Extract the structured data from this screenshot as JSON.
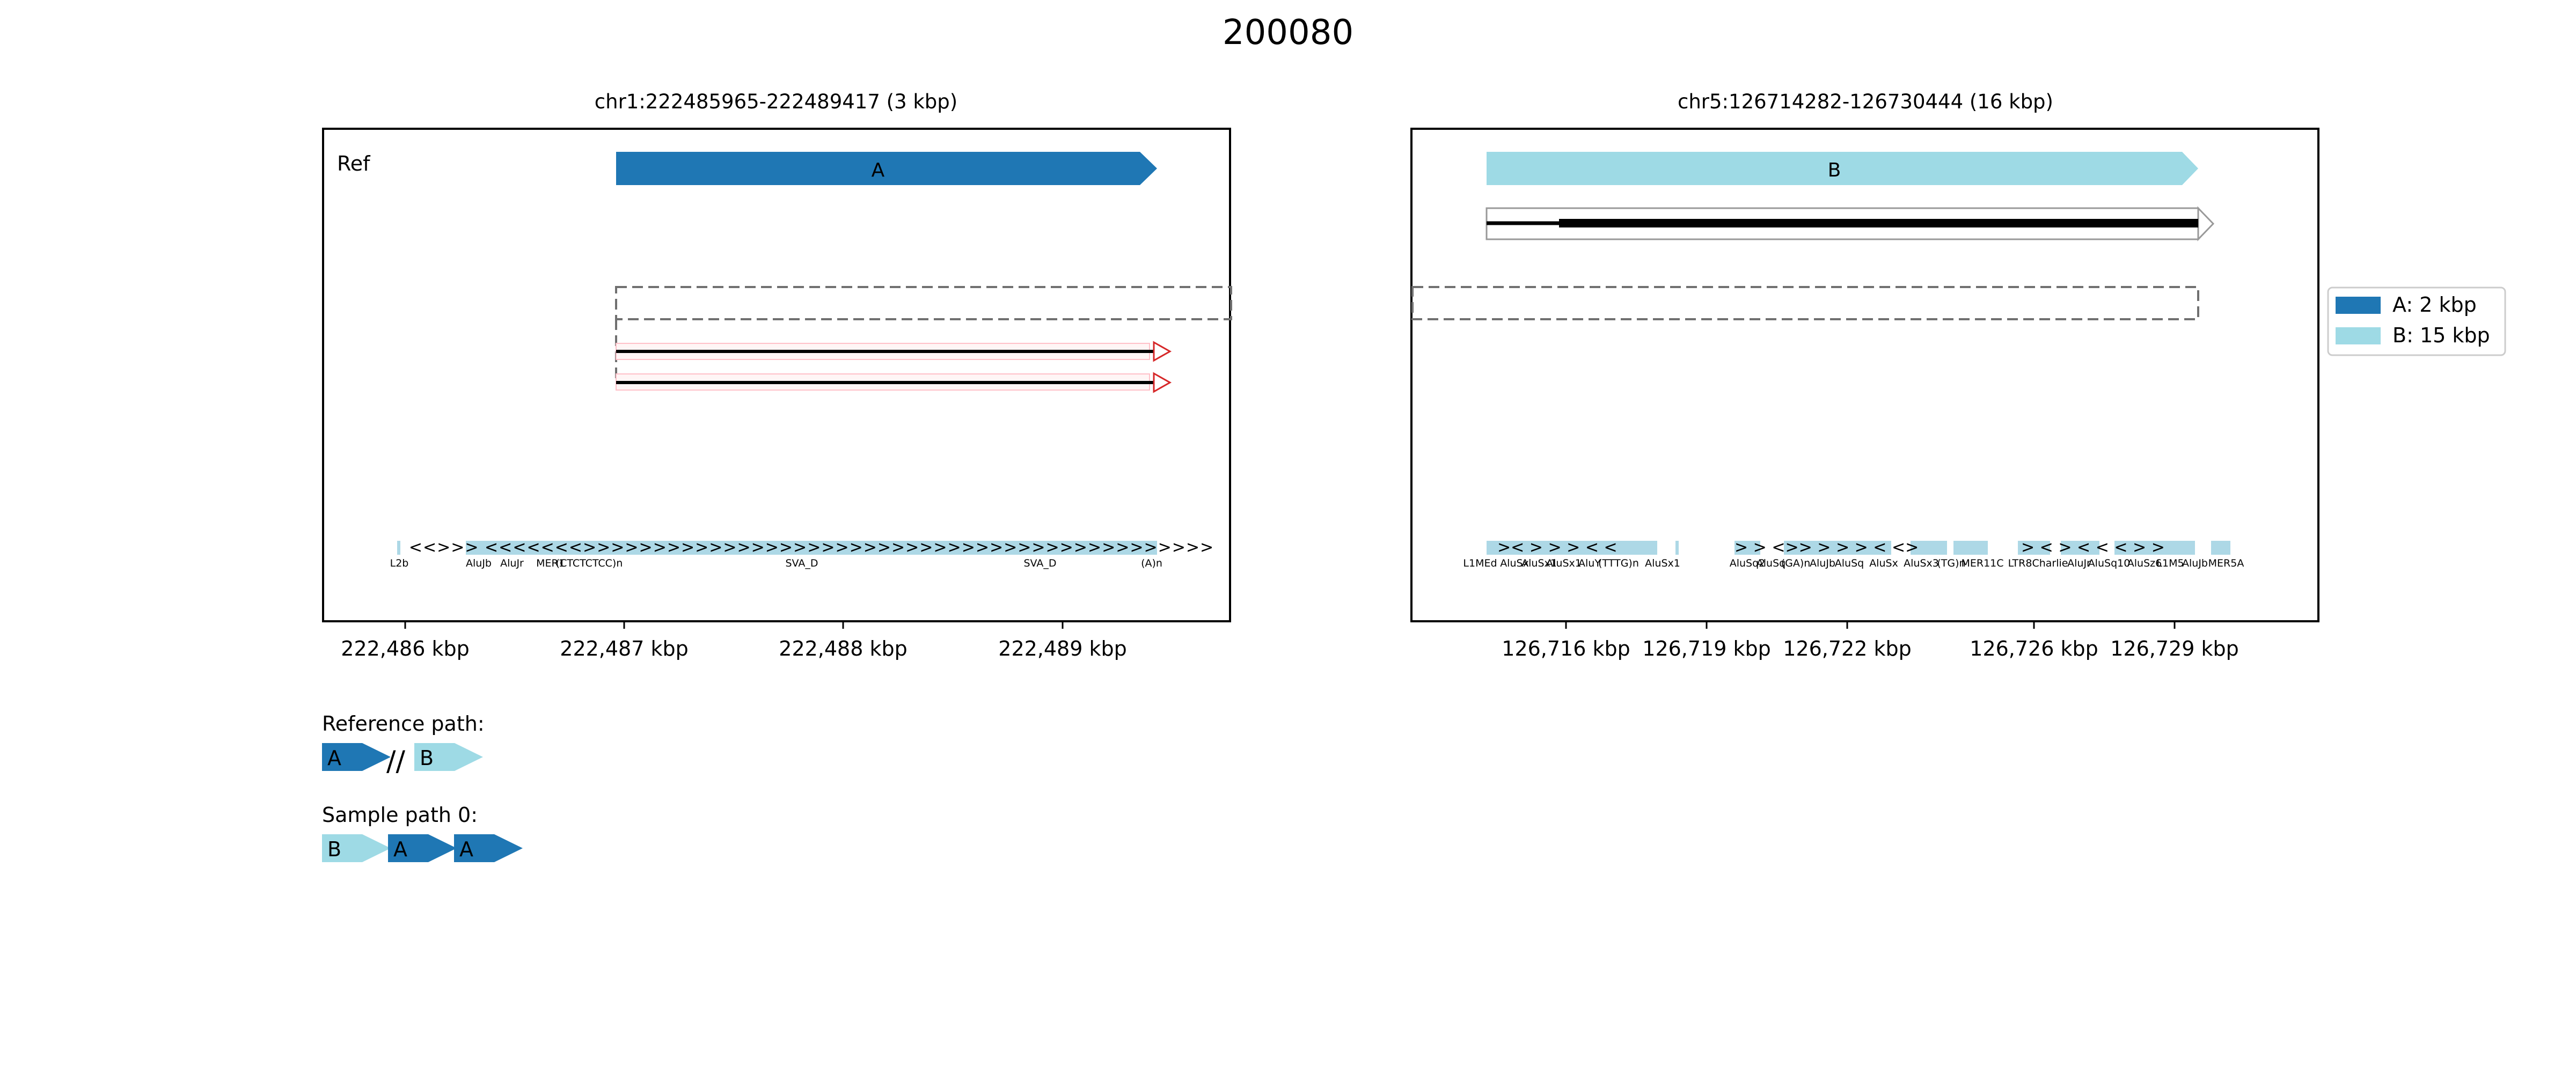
{
  "title": "200080",
  "panels": [
    {
      "region": "chr1:222485965-222489417 (3 kbp)",
      "ref_label": "Ref",
      "ticks": [
        "222,486 kbp",
        "222,487 kbp",
        "222,488 kbp",
        "222,489 kbp"
      ],
      "segment_label": "A",
      "repeats": [
        "L2b",
        "AluJb",
        "AluJr",
        "MER1",
        "(CTCTCTCC)n",
        "SVA_D",
        "SVA_D",
        "(A)n"
      ]
    },
    {
      "region": "chr5:126714282-126730444 (16 kbp)",
      "ticks": [
        "126,716 kbp",
        "126,719 kbp",
        "126,722 kbp",
        "126,726 kbp",
        "126,729 kbp"
      ],
      "segment_label": "B",
      "repeats": [
        "L1MEd",
        "AluSx",
        "AluSx1",
        "AluSx1",
        "AluY",
        "(TTTG)n",
        "AluSx1",
        "AluSq2",
        "AluSq",
        "(GA)n",
        "AluJb",
        "AluSq",
        "AluSx",
        "AluSx3",
        "(TG)n",
        "MER11C",
        "LTR8",
        "Charlie",
        "AluJr",
        "AluSq10",
        "AluSz6",
        "L1M5",
        "AluJb",
        "MER5A"
      ]
    }
  ],
  "legend": [
    {
      "label": "A: 2 kbp",
      "color": "#1f77b4"
    },
    {
      "label": "B: 15 kbp",
      "color": "#9edae5"
    }
  ],
  "paths": [
    {
      "label": "Reference path:",
      "segments": [
        "A",
        "//",
        "B"
      ]
    },
    {
      "label": "Sample path 0:",
      "segments": [
        "B",
        "A",
        "A"
      ]
    }
  ],
  "colors": {
    "A": "#1f77b4",
    "B": "#9edae5",
    "repeat": "#add8e6",
    "inverted_read": "#d62728"
  }
}
